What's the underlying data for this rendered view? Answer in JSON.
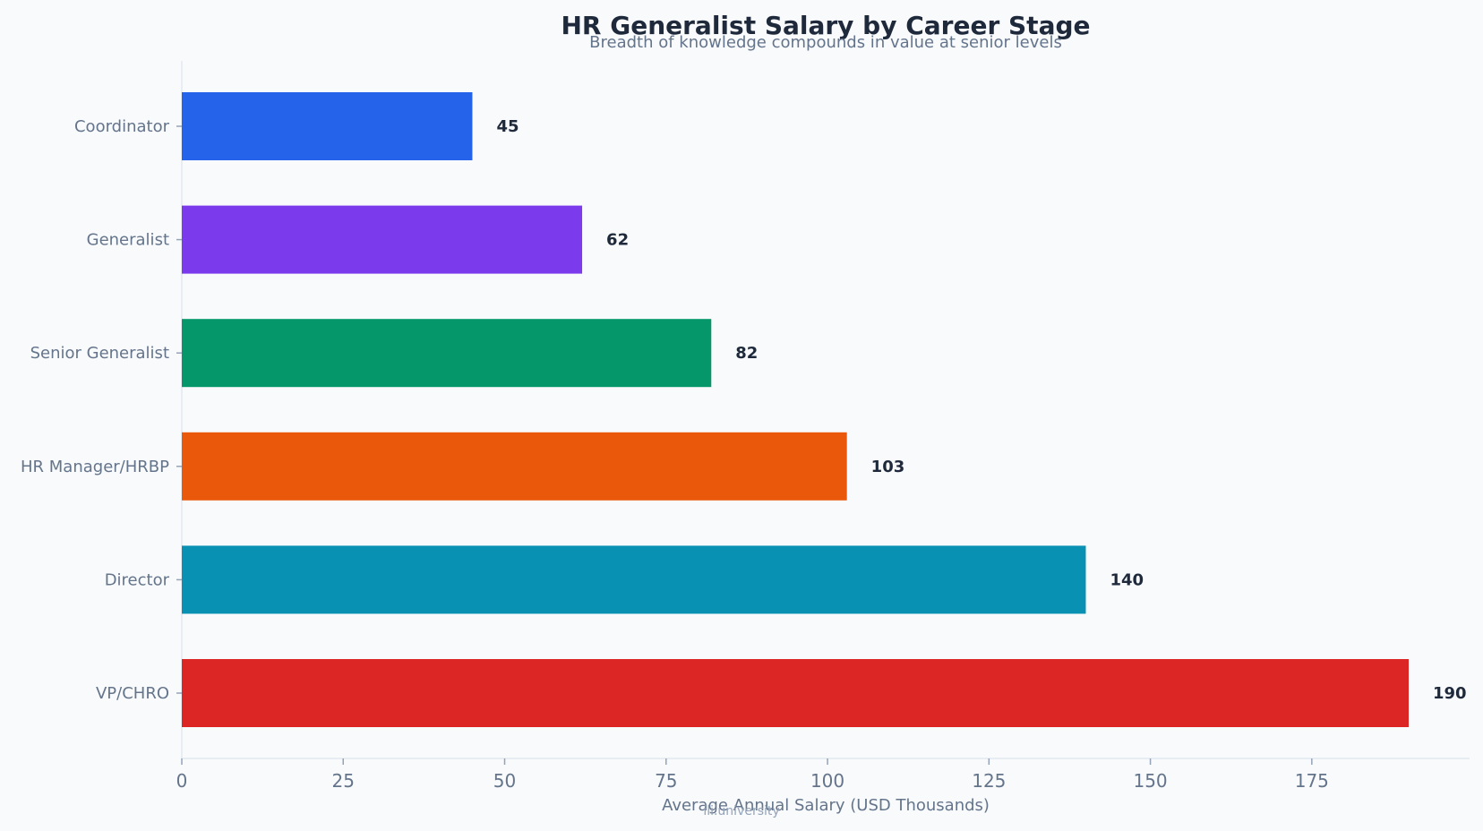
{
  "chart_data": {
    "type": "bar",
    "orientation": "horizontal",
    "title": "HR Generalist Salary by Career Stage",
    "subtitle": "Breadth of knowledge compounds in value at senior levels",
    "xlabel": "Average Annual Salary (USD Thousands)",
    "ylabel": "",
    "categories": [
      "Coordinator",
      "Generalist",
      "Senior Generalist",
      "HR Manager/HRBP",
      "Director",
      "VP/CHRO"
    ],
    "values": [
      45,
      62,
      82,
      103,
      140,
      190
    ],
    "value_labels": [
      "45",
      "62",
      "82",
      "103",
      "140",
      "190"
    ],
    "colors": [
      "#2563eb",
      "#7c3aed",
      "#059669",
      "#ea580c",
      "#0891b2",
      "#dc2626"
    ],
    "xlim": [
      0,
      200
    ],
    "xticks": [
      0,
      25,
      50,
      75,
      100,
      125,
      150,
      175
    ],
    "grid": false,
    "legend": "none"
  },
  "watermark": "ili.university"
}
